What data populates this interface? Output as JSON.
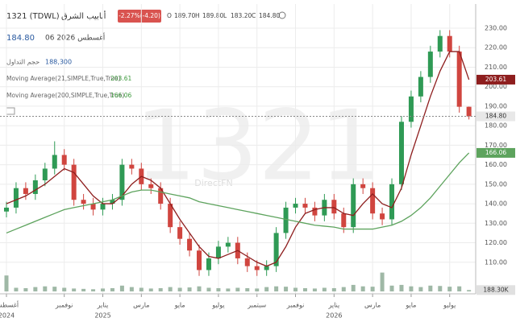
{
  "header": {
    "symbol": "1321 (TDWL)",
    "name": "أنابيب الشرق",
    "change": "-2.27%(-4.20)",
    "ohlc": [
      {
        "label": "O",
        "value": "189.70"
      },
      {
        "label": "H",
        "value": "189.80"
      },
      {
        "label": "L",
        "value": "183.20"
      },
      {
        "label": "C",
        "value": "184.80"
      }
    ],
    "price": "184.80",
    "date": "06 أغسطس 2026"
  },
  "watermark": "1321",
  "brand": "DirectFN",
  "chart_data": {
    "type": "candlestick",
    "x": [
      0,
      0.5,
      1,
      1.5,
      2,
      2.5,
      3,
      3.5,
      4,
      4.5,
      5,
      5.5,
      6,
      6.5,
      7,
      7.5,
      8,
      8.5,
      9,
      9.5,
      10,
      10.5,
      11,
      11.5,
      12,
      12.5,
      13,
      13.5,
      14,
      14.5,
      15,
      15.5,
      16,
      16.5,
      17,
      17.5,
      18,
      18.5,
      19,
      19.5,
      20,
      20.5,
      21,
      21.5,
      22,
      22.5,
      23,
      23.5,
      24
    ],
    "open": [
      136,
      138,
      148,
      145,
      152,
      158,
      165,
      160,
      142,
      140,
      137,
      140,
      142,
      160,
      158,
      150,
      148,
      140,
      128,
      122,
      116,
      106,
      112,
      118,
      120,
      112,
      108,
      106,
      108,
      125,
      138,
      140,
      138,
      134,
      142,
      135,
      128,
      150,
      148,
      135,
      132,
      150,
      182,
      195,
      205,
      218,
      226,
      218,
      189.7
    ],
    "high": [
      141,
      151,
      151,
      155,
      161,
      172,
      168,
      163,
      145,
      143,
      143,
      145,
      163,
      163,
      161,
      153,
      151,
      143,
      131,
      125,
      119,
      115,
      121,
      123,
      123,
      115,
      111,
      111,
      128,
      141,
      143,
      143,
      141,
      145,
      145,
      138,
      153,
      153,
      151,
      138,
      153,
      185,
      198,
      208,
      221,
      229,
      229,
      221,
      189.8
    ],
    "low": [
      133,
      135,
      142,
      142,
      149,
      155,
      157,
      139,
      137,
      134,
      134,
      137,
      139,
      155,
      147,
      145,
      137,
      125,
      119,
      113,
      103,
      103,
      109,
      115,
      109,
      105,
      103,
      103,
      105,
      122,
      135,
      135,
      131,
      131,
      132,
      125,
      125,
      145,
      132,
      129,
      129,
      147,
      179,
      192,
      202,
      215,
      215,
      186.7,
      183.2
    ],
    "close": [
      138,
      148,
      145,
      152,
      158,
      165,
      160,
      142,
      140,
      137,
      140,
      142,
      160,
      158,
      150,
      148,
      140,
      128,
      122,
      116,
      106,
      112,
      118,
      120,
      112,
      108,
      106,
      108,
      125,
      138,
      140,
      138,
      134,
      142,
      135,
      128,
      150,
      148,
      135,
      132,
      150,
      182,
      195,
      205,
      218,
      226,
      218,
      189.7,
      184.8
    ],
    "up_color": "#2f9a55",
    "down_color": "#d0453f",
    "volume_name": "حجم التداول",
    "volume_value_label": "188,300",
    "volume_label": "188.30K",
    "volume_color": "#9fb8a6",
    "volume": [
      2200000,
      500000,
      450000,
      600000,
      700000,
      650000,
      500000,
      400000,
      350000,
      300000,
      400000,
      450000,
      800000,
      600000,
      500000,
      400000,
      450000,
      600000,
      500000,
      550000,
      700000,
      500000,
      450000,
      400000,
      500000,
      450000,
      400000,
      600000,
      700000,
      650000,
      500000,
      450000,
      400000,
      500000,
      450000,
      600000,
      900000,
      700000,
      650000,
      2600000,
      800000,
      900000,
      700000,
      600000,
      800000,
      750000,
      650000,
      700000,
      188300
    ],
    "volume_lim": [
      0,
      3000000
    ],
    "series": [
      {
        "name": "Moving Average(21,SIMPLE,True,True)",
        "color": "#8e1e1e",
        "values": [
          140,
          142,
          144,
          147,
          150,
          154,
          158,
          156,
          150,
          144,
          140,
          140,
          144,
          150,
          154,
          152,
          148,
          140,
          132,
          125,
          118,
          113,
          112,
          114,
          116,
          113,
          110,
          108,
          110,
          118,
          128,
          135,
          137,
          138,
          138,
          135,
          134,
          140,
          145,
          140,
          138,
          148,
          165,
          180,
          195,
          208,
          218,
          218,
          203.61
        ]
      },
      {
        "name": "Moving Average(200,SIMPLE,True,True)",
        "color": "#5da35d",
        "values": [
          125,
          127,
          129,
          131,
          133,
          135,
          137,
          138,
          139,
          140,
          141,
          142,
          144,
          146,
          147,
          147,
          146,
          145,
          144,
          143,
          141,
          140,
          139,
          138,
          137,
          136,
          135,
          134,
          133,
          132,
          131,
          130,
          129,
          128.5,
          128,
          127,
          127,
          127,
          127,
          128,
          129,
          131,
          134,
          138,
          143,
          149,
          155,
          161,
          166.06
        ]
      }
    ],
    "xlim": [
      0,
      24.35
    ],
    "xticks": [
      {
        "value": 0,
        "label": "أغسطس"
      },
      {
        "value": 3,
        "label": "نوفمبر"
      },
      {
        "value": 5,
        "label": "يناير"
      },
      {
        "value": 7,
        "label": "مارس"
      },
      {
        "value": 9,
        "label": "مايو"
      },
      {
        "value": 11,
        "label": "يوليو"
      },
      {
        "value": 13,
        "label": "سبتمبر"
      },
      {
        "value": 15,
        "label": "نوفمبر"
      },
      {
        "value": 17,
        "label": "يناير"
      },
      {
        "value": 19,
        "label": "مارس"
      },
      {
        "value": 21,
        "label": "مايو"
      },
      {
        "value": 23,
        "label": "يوليو"
      }
    ],
    "xtick_years": [
      {
        "value": 0,
        "label": "2024"
      },
      {
        "value": 5,
        "label": "2025"
      },
      {
        "value": 17,
        "label": "2026"
      }
    ],
    "ylim": [
      100,
      230
    ],
    "yticks": [
      {
        "value": 110,
        "label": "110.00"
      },
      {
        "value": 120,
        "label": "120.00"
      },
      {
        "value": 130,
        "label": "130.00"
      },
      {
        "value": 140,
        "label": "140.00"
      },
      {
        "value": 150,
        "label": "150.00"
      },
      {
        "value": 160,
        "label": "160.00"
      },
      {
        "value": 170,
        "label": "170.00"
      },
      {
        "value": 180,
        "label": "180.00"
      },
      {
        "value": 190,
        "label": "190.00"
      },
      {
        "value": 200,
        "label": "200.00"
      },
      {
        "value": 210,
        "label": "210.00"
      },
      {
        "value": 220,
        "label": "220.00"
      },
      {
        "value": 230,
        "label": "230.00"
      }
    ],
    "grid": true
  }
}
